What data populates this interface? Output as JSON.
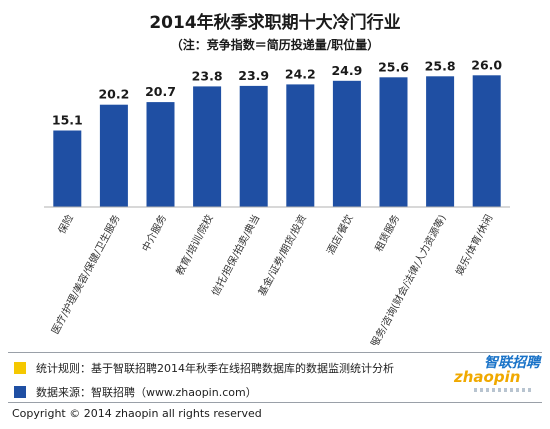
{
  "chart_data": {
    "type": "bar",
    "title": "2014年秋季求职期十大冷门行业",
    "subtitle": "（注：竞争指数＝简历投递量/职位量）",
    "categories": [
      "保险",
      "医疗/护理/美容/保健/卫生服务",
      "中介服务",
      "教育/培训/院校",
      "信托/担保/拍卖/典当",
      "基金/证券/期货/投资",
      "酒店/餐饮",
      "租赁服务",
      "专业服务/咨询(财会/法律/人力资源等)",
      "娱乐/体育/休闲"
    ],
    "values": [
      15.1,
      20.2,
      20.7,
      23.8,
      23.9,
      24.2,
      24.9,
      25.6,
      25.8,
      26.0
    ],
    "value_labels": [
      "15.1",
      "20.2",
      "20.7",
      "23.8",
      "23.9",
      "24.2",
      "24.9",
      "25.6",
      "25.8",
      "26.0"
    ],
    "ylim": [
      0,
      30
    ],
    "bar_color": "#1f4fa3",
    "grid": false,
    "legend": [
      {
        "color": "#f5c800",
        "text": "统计规则：基于智联招聘2014年秋季在线招聘数据库的数据监测统计分析"
      },
      {
        "color": "#1f4fa3",
        "text": "数据来源：智联招聘（www.zhaopin.com）"
      }
    ]
  },
  "footer": {
    "copyright": "Copyright  ©  2014 zhaopin all rights reserved"
  },
  "logo": {
    "cn": "智联招聘",
    "en": "zhaopin"
  }
}
